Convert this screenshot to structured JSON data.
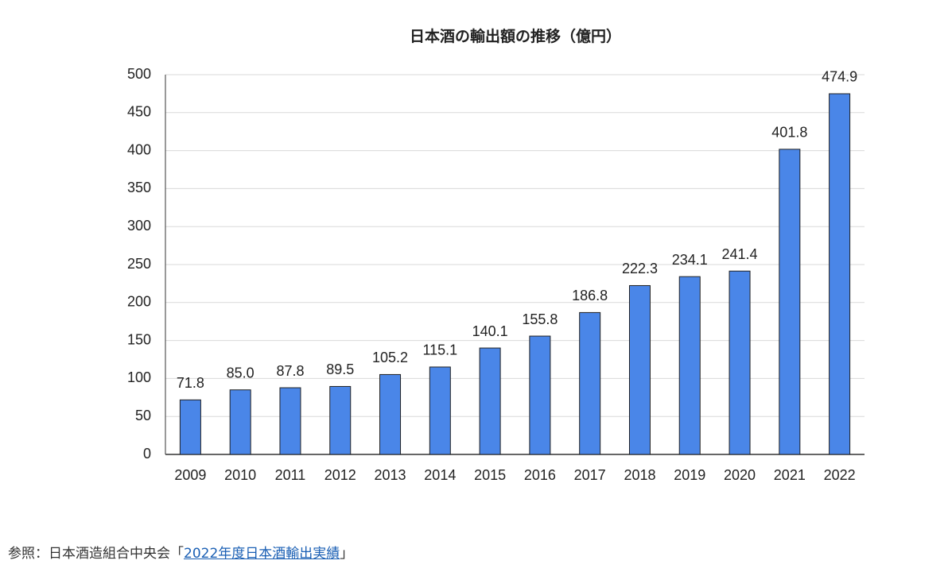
{
  "chart_data": {
    "type": "bar",
    "title": "日本酒の輸出額の推移（億円）",
    "categories": [
      "2009",
      "2010",
      "2011",
      "2012",
      "2013",
      "2014",
      "2015",
      "2016",
      "2017",
      "2018",
      "2019",
      "2020",
      "2021",
      "2022"
    ],
    "values": [
      71.8,
      85.0,
      87.8,
      89.5,
      105.2,
      115.1,
      140.1,
      155.8,
      186.8,
      222.3,
      234.1,
      241.4,
      401.8,
      474.9
    ],
    "value_labels": [
      "71.8",
      "85.0",
      "87.8",
      "89.5",
      "105.2",
      "115.1",
      "140.1",
      "155.8",
      "186.8",
      "222.3",
      "234.1",
      "241.4",
      "401.8",
      "474.9"
    ],
    "color": "#4a86e8",
    "ylim": [
      0,
      500
    ],
    "yticks": [
      0,
      50,
      100,
      150,
      200,
      250,
      300,
      350,
      400,
      450,
      500
    ],
    "grid": true
  },
  "source": {
    "prefix": "参照：日本酒造組合中央会「",
    "link": "2022年度日本酒輸出実績",
    "suffix": "」"
  }
}
